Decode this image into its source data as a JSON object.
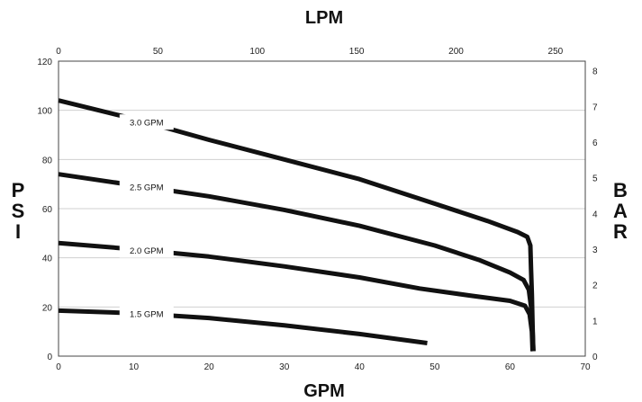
{
  "chart_data": {
    "type": "line",
    "xlabel": "GPM",
    "x2label": "LPM",
    "ylabel": "PSI",
    "y2label": "BAR",
    "xlim": [
      0,
      70
    ],
    "x2lim": [
      0,
      265
    ],
    "ylim": [
      0,
      120
    ],
    "y2lim": [
      0,
      8.27
    ],
    "xticks": [
      "0",
      "10",
      "20",
      "30",
      "40",
      "50",
      "60",
      "70"
    ],
    "x2ticks": [
      "0",
      "50",
      "100",
      "150",
      "200",
      "250"
    ],
    "yticks": [
      "0",
      "20",
      "40",
      "60",
      "80",
      "100",
      "120"
    ],
    "y2ticks": [
      "0",
      "1",
      "2",
      "3",
      "4",
      "5",
      "6",
      "7",
      "8"
    ],
    "grid": "horizontal",
    "series": [
      {
        "name": "3.0 GPM",
        "points": [
          [
            0,
            104
          ],
          [
            10,
            96.5
          ],
          [
            20,
            88
          ],
          [
            30,
            80
          ],
          [
            40,
            72
          ],
          [
            50,
            62
          ],
          [
            57,
            55
          ],
          [
            61,
            50.5
          ],
          [
            62.3,
            48.5
          ],
          [
            62.7,
            45
          ],
          [
            62.8,
            35
          ],
          [
            62.9,
            25
          ],
          [
            63,
            12
          ],
          [
            63.1,
            2
          ]
        ]
      },
      {
        "name": "2.5 GPM",
        "points": [
          [
            0,
            74
          ],
          [
            10,
            69.5
          ],
          [
            20,
            65
          ],
          [
            30,
            59.5
          ],
          [
            40,
            53
          ],
          [
            50,
            45
          ],
          [
            56,
            39
          ],
          [
            60,
            34
          ],
          [
            61.8,
            31
          ],
          [
            62.5,
            27
          ],
          [
            62.8,
            20
          ],
          [
            63,
            10
          ],
          [
            63.1,
            2
          ]
        ]
      },
      {
        "name": "2.0 GPM",
        "points": [
          [
            0,
            46
          ],
          [
            10,
            43.5
          ],
          [
            20,
            40.5
          ],
          [
            30,
            36.5
          ],
          [
            40,
            32
          ],
          [
            48,
            27.5
          ],
          [
            55,
            24.5
          ],
          [
            60,
            22.5
          ],
          [
            62,
            20.5
          ],
          [
            62.6,
            17
          ],
          [
            62.9,
            10
          ],
          [
            63,
            2
          ]
        ]
      },
      {
        "name": "1.5 GPM",
        "points": [
          [
            0,
            18.5
          ],
          [
            10,
            17.5
          ],
          [
            20,
            15.5
          ],
          [
            30,
            12.5
          ],
          [
            40,
            9
          ],
          [
            49,
            5.3
          ]
        ]
      }
    ],
    "label_positions": [
      {
        "series": "3.0 GPM",
        "x": 11.7
      },
      {
        "series": "2.5 GPM",
        "x": 11.7
      },
      {
        "series": "2.0 GPM",
        "x": 11.7
      },
      {
        "series": "1.5 GPM",
        "x": 11.7
      }
    ]
  }
}
